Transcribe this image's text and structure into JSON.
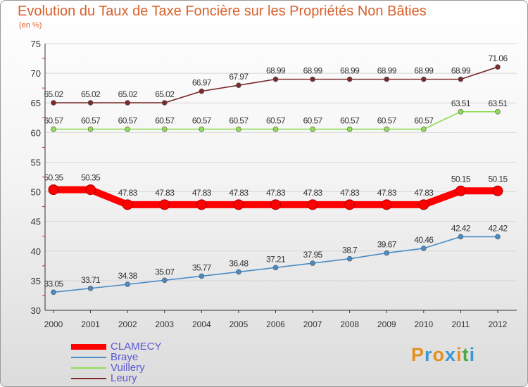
{
  "page": {
    "title": "Evolution du Taux de Taxe Foncière sur les Propriétés Non Bâties",
    "subtitle": "(en %)"
  },
  "logo": {
    "letters": [
      "P",
      "r",
      "o",
      "x",
      "i",
      "t",
      "i"
    ],
    "colors": [
      "#e2901f",
      "#3a9ad6",
      "#e2901f",
      "#3a9ad6",
      "#e2901f",
      "#4aa84a",
      "#3a9ad6"
    ]
  },
  "chart_data": {
    "type": "line",
    "title": "Evolution du Taux de Taxe Foncière sur les Propriétés Non Bâties",
    "ylabel": "(en %)",
    "xlabel": "",
    "ylim": [
      30,
      75
    ],
    "yticks": [
      30,
      35,
      40,
      45,
      50,
      55,
      60,
      65,
      70,
      75
    ],
    "grid": "horizontal",
    "legend": "bottom-left",
    "categories": [
      "2000",
      "2001",
      "2002",
      "2003",
      "2004",
      "2005",
      "2006",
      "2007",
      "2008",
      "2009",
      "2010",
      "2011",
      "2012"
    ],
    "series": [
      {
        "name": "CLAMECY",
        "color": "#ff0000",
        "thick": true,
        "values": [
          50.35,
          50.35,
          47.83,
          47.83,
          47.83,
          47.83,
          47.83,
          47.83,
          47.83,
          47.83,
          47.83,
          50.15,
          50.15
        ],
        "labels": [
          "50.35",
          "50.35",
          "47.83",
          "47.83",
          "47.83",
          "47.83",
          "47.83",
          "47.83",
          "47.83",
          "47.83",
          "47.83",
          "50.15",
          "50.15"
        ]
      },
      {
        "name": "Braye",
        "color": "#4a8bc4",
        "thick": false,
        "values": [
          33.05,
          33.71,
          34.38,
          35.07,
          35.77,
          36.48,
          37.21,
          37.95,
          38.7,
          39.67,
          40.46,
          42.42,
          42.42
        ],
        "labels": [
          "33.05",
          "33.71",
          "34.38",
          "35.07",
          "35.77",
          "36.48",
          "37.21",
          "37.95",
          "38.7",
          "39.67",
          "40.46",
          "42.42",
          "42.42"
        ]
      },
      {
        "name": "Vuillery",
        "color": "#8fdc55",
        "thick": false,
        "values": [
          60.57,
          60.57,
          60.57,
          60.57,
          60.57,
          60.57,
          60.57,
          60.57,
          60.57,
          60.57,
          60.57,
          63.51,
          63.51
        ],
        "labels": [
          "60.57",
          "60.57",
          "60.57",
          "60.57",
          "60.57",
          "60.57",
          "60.57",
          "60.57",
          "60.57",
          "60.57",
          "60.57",
          "63.51",
          "63.51"
        ]
      },
      {
        "name": "Leury",
        "color": "#7a2a2a",
        "thick": false,
        "values": [
          65.02,
          65.02,
          65.02,
          65.02,
          66.97,
          67.97,
          68.99,
          68.99,
          68.99,
          68.99,
          68.99,
          68.99,
          71.06
        ],
        "labels": [
          "65.02",
          "65.02",
          "65.02",
          "65.02",
          "66.97",
          "67.97",
          "68.99",
          "68.99",
          "68.99",
          "68.99",
          "68.99",
          "68.99",
          "71.06"
        ]
      }
    ]
  }
}
